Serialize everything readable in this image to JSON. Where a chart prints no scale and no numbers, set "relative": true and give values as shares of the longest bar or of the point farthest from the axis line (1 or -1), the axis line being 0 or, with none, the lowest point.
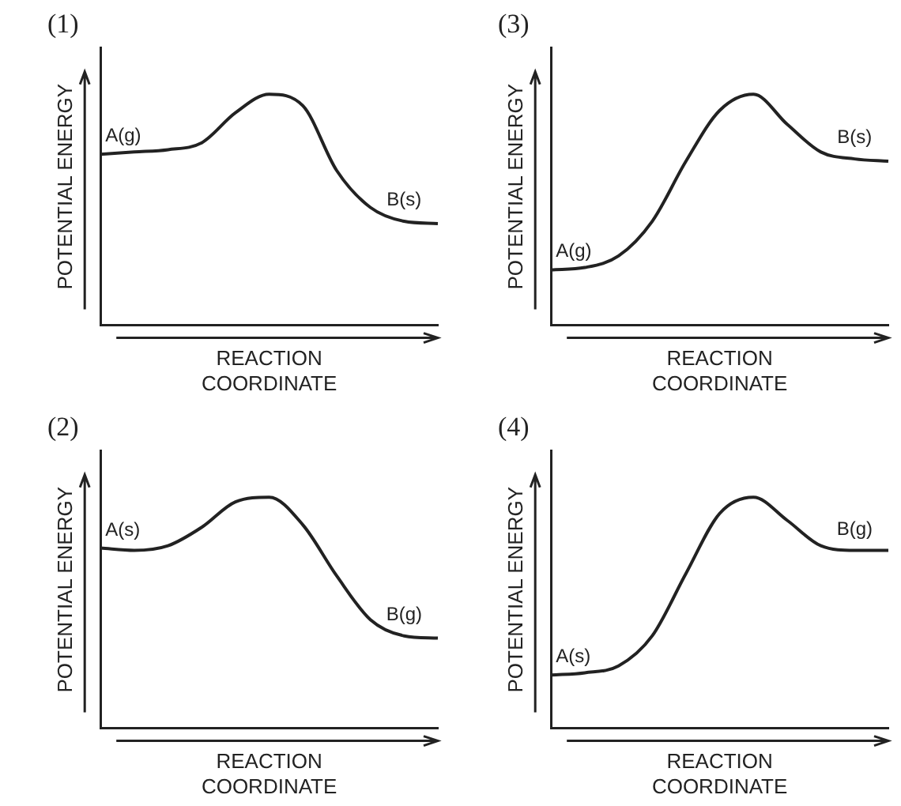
{
  "chart_data": [
    {
      "type": "line",
      "title": "(1)",
      "ylabel": "POTENTIAL ENERGY",
      "xlabel": "REACTION COORDINATE",
      "relative": true,
      "tick_labels": false,
      "color": "#222222",
      "categories": [
        null,
        null,
        null,
        null,
        null,
        null,
        null,
        null,
        null,
        null,
        null
      ],
      "values": [
        0.74,
        0.75,
        0.76,
        0.79,
        0.92,
        1,
        0.95,
        0.67,
        0.51,
        0.45,
        0.44
      ],
      "annotations": [
        "A(g)",
        "B(s)"
      ]
    },
    {
      "type": "line",
      "title": "(3)",
      "ylabel": "POTENTIAL ENERGY",
      "xlabel": "REACTION COORDINATE",
      "relative": true,
      "tick_labels": false,
      "color": "#222222",
      "categories": [
        null,
        null,
        null,
        null,
        null,
        null,
        null,
        null,
        null,
        null,
        null
      ],
      "values": [
        0.24,
        0.25,
        0.3,
        0.45,
        0.71,
        0.93,
        1,
        0.87,
        0.75,
        0.72,
        0.71
      ],
      "annotations": [
        "A(g)",
        "B(s)"
      ]
    },
    {
      "type": "line",
      "title": "(2)",
      "ylabel": "POTENTIAL ENERGY",
      "xlabel": "REACTION COORDINATE",
      "relative": true,
      "tick_labels": false,
      "color": "#222222",
      "categories": [
        null,
        null,
        null,
        null,
        null,
        null,
        null,
        null,
        null,
        null,
        null
      ],
      "values": [
        0.78,
        0.77,
        0.79,
        0.87,
        0.98,
        1,
        0.88,
        0.66,
        0.47,
        0.4,
        0.39
      ],
      "annotations": [
        "A(s)",
        "B(g)"
      ]
    },
    {
      "type": "line",
      "title": "(4)",
      "ylabel": "POTENTIAL ENERGY",
      "xlabel": "REACTION COORDINATE",
      "relative": true,
      "tick_labels": false,
      "color": "#222222",
      "categories": [
        null,
        null,
        null,
        null,
        null,
        null,
        null,
        null,
        null,
        null,
        null
      ],
      "values": [
        0.23,
        0.24,
        0.27,
        0.4,
        0.67,
        0.93,
        1,
        0.9,
        0.79,
        0.77,
        0.77
      ],
      "annotations": [
        "A(s)",
        "B(g)"
      ]
    }
  ]
}
